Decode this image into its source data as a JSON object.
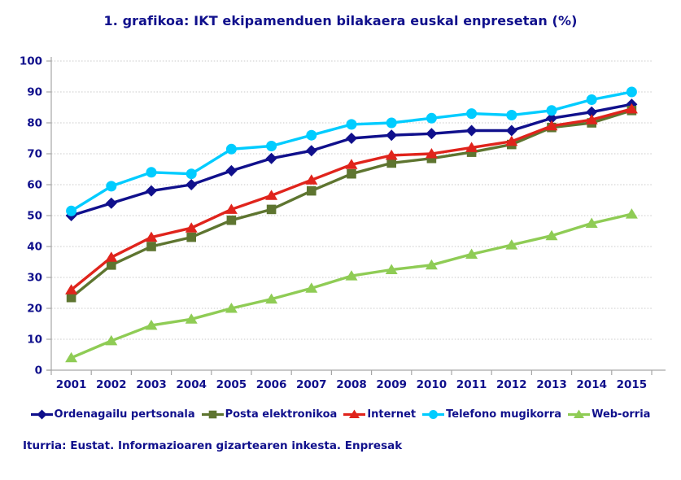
{
  "source": "Iturria: Eustat. Informazioaren gizartearen inkesta. Enpresak",
  "colors": {
    "text": "#10108C",
    "axis": "#A6A6A6",
    "gridline": "#C8C8C8",
    "background": "#FFFFFF"
  },
  "chart_data": {
    "type": "line",
    "title": "1. grafikoa: IKT ekipamenduen bilakaera euskal enpresetan (%)",
    "categories": [
      "2001",
      "2002",
      "2003",
      "2004",
      "2005",
      "2006",
      "2007",
      "2008",
      "2009",
      "2010",
      "2011",
      "2012",
      "2013",
      "2014",
      "2015"
    ],
    "xlabel": "",
    "ylabel": "",
    "ylim": [
      0,
      100
    ],
    "ytick_step": 10,
    "grid": "horizontal-dotted",
    "legend_position": "bottom",
    "series": [
      {
        "name": "Ordenagailu pertsonala",
        "color": "#10108C",
        "marker": "diamond",
        "values": [
          50,
          54,
          58,
          60,
          64.5,
          68.5,
          71,
          75,
          76,
          76.5,
          77.5,
          77.5,
          81.5,
          83.5,
          86
        ]
      },
      {
        "name": "Posta elektronikoa",
        "color": "#5E7530",
        "marker": "square",
        "values": [
          23.5,
          34,
          40,
          43,
          48.5,
          52,
          58,
          63.5,
          67,
          68.5,
          70.5,
          73,
          78.5,
          80,
          84
        ]
      },
      {
        "name": "Internet",
        "color": "#E0241C",
        "marker": "triangle",
        "values": [
          26,
          36.5,
          43,
          46,
          52,
          56.5,
          61.5,
          66.5,
          69.5,
          70,
          72,
          74,
          79,
          81,
          84.5
        ]
      },
      {
        "name": "Telefono mugikorra",
        "color": "#00CCFF",
        "marker": "circle",
        "values": [
          51.5,
          59.5,
          64,
          63.5,
          71.5,
          72.5,
          76,
          79.5,
          80,
          81.5,
          83,
          82.5,
          84,
          87.5,
          90
        ]
      },
      {
        "name": "Web-orria",
        "color": "#8FCC55",
        "marker": "triangle",
        "values": [
          4,
          9.5,
          14.5,
          16.5,
          20,
          23,
          26.5,
          30.5,
          32.5,
          34,
          37.5,
          40.5,
          43.5,
          47.5,
          50.5
        ]
      }
    ]
  }
}
